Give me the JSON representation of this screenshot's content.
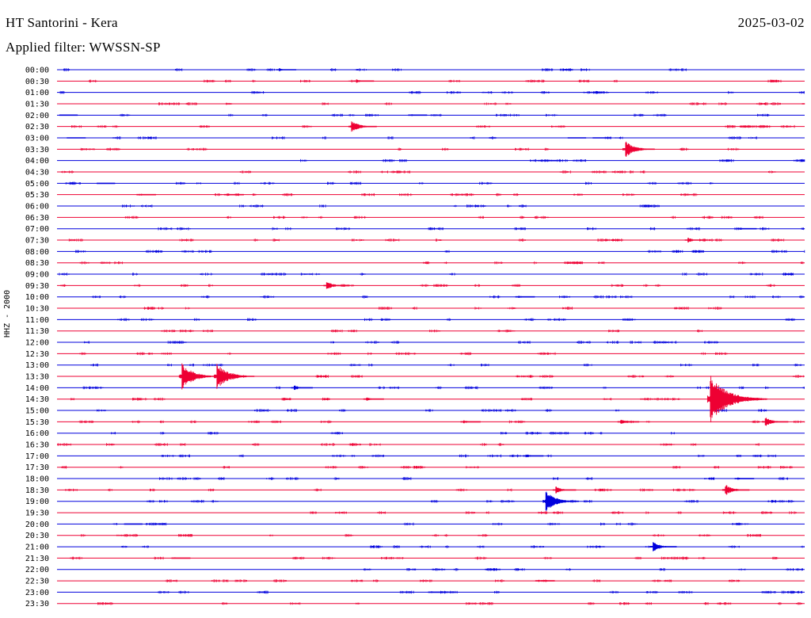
{
  "header": {
    "title": "HT Santorini - Kera",
    "date": "2025-03-02",
    "filter": "Applied filter: WWSSN-SP"
  },
  "axis": {
    "ylabel": "HHZ - 2000"
  },
  "colors": {
    "even_trace": "#0000dd",
    "odd_trace": "#ee0033"
  },
  "chart_data": {
    "type": "line",
    "title": "",
    "ylabel": "HHZ - 2000",
    "row_minutes": 30,
    "x_range_minutes": [
      0,
      30
    ],
    "rows": [
      "00:00",
      "00:30",
      "01:00",
      "01:30",
      "02:00",
      "02:30",
      "03:00",
      "03:30",
      "04:00",
      "04:30",
      "05:00",
      "05:30",
      "06:00",
      "06:30",
      "07:00",
      "07:30",
      "08:00",
      "08:30",
      "09:00",
      "09:30",
      "10:00",
      "10:30",
      "11:00",
      "11:30",
      "12:00",
      "12:30",
      "13:00",
      "13:30",
      "14:00",
      "14:30",
      "15:00",
      "15:30",
      "16:00",
      "16:30",
      "17:00",
      "17:30",
      "18:00",
      "18:30",
      "19:00",
      "19:30",
      "20:00",
      "20:30",
      "21:00",
      "21:30",
      "22:00",
      "22:30",
      "23:00",
      "23:30"
    ],
    "events": [
      {
        "row": "00:00",
        "minute": 8.9,
        "amplitude": 0.3
      },
      {
        "row": "00:30",
        "minute": 12.0,
        "amplitude": 0.35
      },
      {
        "row": "01:30",
        "minute": 30.0,
        "amplitude": 0.4
      },
      {
        "row": "02:00",
        "minute": 0.2,
        "amplitude": 0.15
      },
      {
        "row": "02:00",
        "minute": 14.2,
        "amplitude": 0.2
      },
      {
        "row": "02:30",
        "minute": 11.8,
        "amplitude": 1.2
      },
      {
        "row": "03:00",
        "minute": 0.5,
        "amplitude": 0.2
      },
      {
        "row": "03:00",
        "minute": 20.6,
        "amplitude": 0.15
      },
      {
        "row": "03:00",
        "minute": 21.6,
        "amplitude": 0.15
      },
      {
        "row": "03:30",
        "minute": 22.8,
        "amplitude": 1.6
      },
      {
        "row": "04:00",
        "minute": 19.4,
        "amplitude": 0.2
      },
      {
        "row": "05:00",
        "minute": 1.7,
        "amplitude": 0.15
      },
      {
        "row": "05:30",
        "minute": 3.3,
        "amplitude": 0.25
      },
      {
        "row": "05:30",
        "minute": 6.8,
        "amplitude": 0.3
      },
      {
        "row": "07:00",
        "minute": 27.4,
        "amplitude": 0.25
      },
      {
        "row": "07:30",
        "minute": 25.3,
        "amplitude": 0.5
      },
      {
        "row": "09:30",
        "minute": 10.8,
        "amplitude": 0.85
      },
      {
        "row": "10:00",
        "minute": 18.5,
        "amplitude": 0.25
      },
      {
        "row": "13:30",
        "minute": 5.0,
        "amplitude": 2.5
      },
      {
        "row": "13:30",
        "minute": 6.4,
        "amplitude": 2.5
      },
      {
        "row": "14:00",
        "minute": 9.5,
        "amplitude": 0.5
      },
      {
        "row": "14:30",
        "minute": 12.4,
        "amplitude": 0.35
      },
      {
        "row": "14:30",
        "minute": 26.2,
        "amplitude": 4.5
      },
      {
        "row": "15:30",
        "minute": 16.3,
        "amplitude": 0.35
      },
      {
        "row": "15:30",
        "minute": 22.6,
        "amplitude": 0.5
      },
      {
        "row": "15:30",
        "minute": 28.4,
        "amplitude": 0.95
      },
      {
        "row": "17:00",
        "minute": 18.8,
        "amplitude": 0.4
      },
      {
        "row": "18:00",
        "minute": 27.3,
        "amplitude": 0.25
      },
      {
        "row": "18:30",
        "minute": 20.0,
        "amplitude": 0.7
      },
      {
        "row": "18:30",
        "minute": 26.8,
        "amplitude": 1.1
      },
      {
        "row": "19:00",
        "minute": 19.6,
        "amplitude": 2.0
      },
      {
        "row": "20:00",
        "minute": 2.8,
        "amplitude": 0.15
      },
      {
        "row": "21:00",
        "minute": 23.9,
        "amplitude": 1.0
      },
      {
        "row": "21:30",
        "minute": 4.7,
        "amplitude": 0.2
      },
      {
        "row": "22:30",
        "minute": 19.3,
        "amplitude": 0.25
      },
      {
        "row": "23:00",
        "minute": 15.0,
        "amplitude": 0.2
      }
    ]
  }
}
